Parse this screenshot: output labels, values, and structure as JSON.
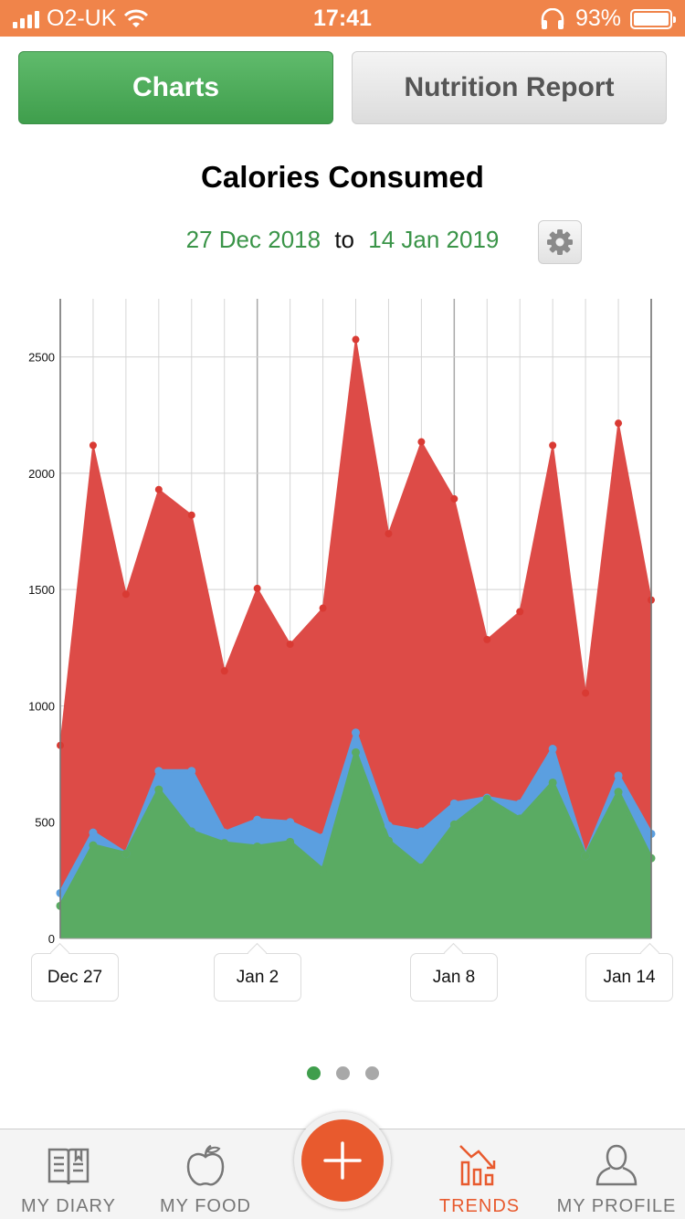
{
  "status_bar": {
    "carrier": "O2-UK",
    "time": "17:41",
    "battery": "93%"
  },
  "tabs": [
    {
      "label": "Charts",
      "active": true
    },
    {
      "label": "Nutrition Report",
      "active": false
    }
  ],
  "chart_data": {
    "type": "area",
    "title": "Calories Consumed",
    "date_range": {
      "from": "27 Dec 2018",
      "separator": "to",
      "to": "14 Jan 2019"
    },
    "x": [
      "2018-12-27",
      "2018-12-28",
      "2018-12-29",
      "2018-12-30",
      "2018-12-31",
      "2019-01-01",
      "2019-01-02",
      "2019-01-03",
      "2019-01-04",
      "2019-01-05",
      "2019-01-06",
      "2019-01-07",
      "2019-01-08",
      "2019-01-09",
      "2019-01-10",
      "2019-01-11",
      "2019-01-12",
      "2019-01-13",
      "2019-01-14"
    ],
    "x_tick_labels": [
      {
        "label": "Dec 27",
        "index": 0
      },
      {
        "label": "Jan 2",
        "index": 6
      },
      {
        "label": "Jan 8",
        "index": 12
      },
      {
        "label": "Jan 14",
        "index": 18
      }
    ],
    "y_ticks": [
      "0",
      "500",
      "1000",
      "1500",
      "2000",
      "2500"
    ],
    "ylim": [
      0,
      2750
    ],
    "grid": true,
    "series": [
      {
        "color": "#dd4b47",
        "values": [
          830,
          2120,
          1480,
          1930,
          1820,
          1150,
          1505,
          1265,
          1420,
          2575,
          1740,
          2135,
          1890,
          1285,
          1405,
          2120,
          1055,
          2215,
          1455
        ]
      },
      {
        "color": "#5b9fe0",
        "values": [
          195,
          455,
          365,
          720,
          720,
          455,
          510,
          500,
          435,
          885,
          485,
          460,
          580,
          605,
          580,
          815,
          355,
          700,
          450
        ]
      },
      {
        "color": "#5aab63",
        "values": [
          140,
          400,
          365,
          640,
          460,
          410,
          395,
          415,
          295,
          800,
          420,
          305,
          490,
          600,
          515,
          670,
          355,
          630,
          345
        ]
      }
    ]
  },
  "page_indicator": {
    "count": 3,
    "active": 0
  },
  "tab_bar": {
    "items": [
      {
        "label": "MY DIARY",
        "icon": "diary-icon"
      },
      {
        "label": "MY FOOD",
        "icon": "apple-icon"
      },
      {
        "label": "TRENDS",
        "icon": "trends-icon",
        "active": true
      },
      {
        "label": "MY PROFILE",
        "icon": "profile-icon"
      }
    ],
    "add_icon": "plus-icon"
  },
  "colors": {
    "status_bar": "#f0844a",
    "accent_green": "#3f9e4c",
    "accent_orange": "#e85a2e"
  }
}
